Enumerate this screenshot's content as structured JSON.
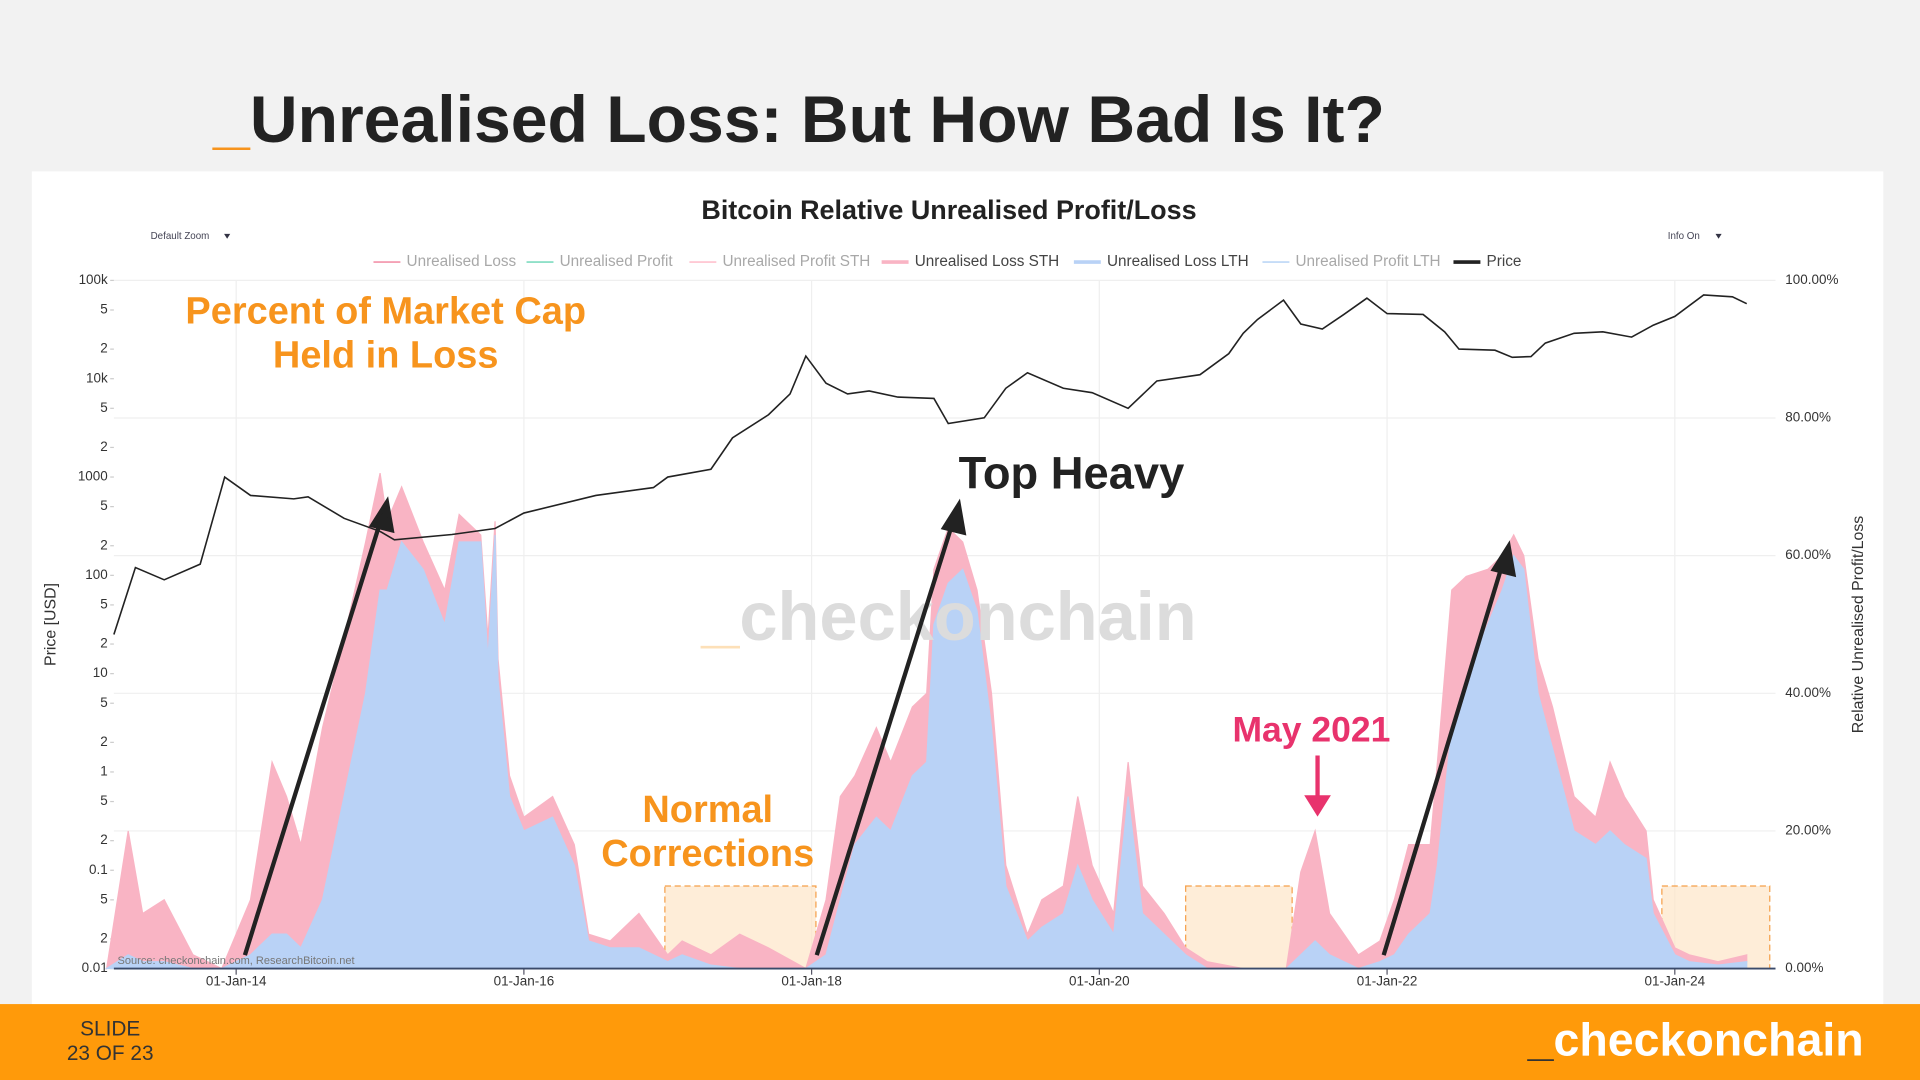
{
  "slide": {
    "title": [
      "_",
      "Unrealised Loss: But How Bad Is It?"
    ],
    "slide_label": "SLIDE",
    "slide_number": "23 OF 23",
    "brand": [
      "_",
      "checkonchain"
    ]
  },
  "chart_data": {
    "type": "area",
    "title": "Bitcoin Relative Unrealised Profit/Loss",
    "controls": [
      "Default Zoom",
      "Info On"
    ],
    "ylabel": "Price [USD]",
    "y2label": "Relative Unrealised Profit/Loss",
    "source": "Source: checkonchain.com, ResearchBitcoin.net",
    "watermark": [
      "_",
      "checkonchain"
    ],
    "log_y": true,
    "grid": true,
    "legend": "top",
    "xlim": [
      2013.15,
      2024.7
    ],
    "xticks": [
      {
        "value": 2014,
        "label": "01-Jan-14"
      },
      {
        "value": 2016,
        "label": "01-Jan-16"
      },
      {
        "value": 2018,
        "label": "01-Jan-18"
      },
      {
        "value": 2020,
        "label": "01-Jan-20"
      },
      {
        "value": 2022,
        "label": "01-Jan-22"
      },
      {
        "value": 2024,
        "label": "01-Jan-24"
      }
    ],
    "ylim": [
      0.01,
      100000
    ],
    "yticks": [
      {
        "value": 0.01,
        "label": "0.01"
      },
      {
        "value": 0.02,
        "label": "2"
      },
      {
        "value": 0.05,
        "label": "5"
      },
      {
        "value": 0.1,
        "label": "0.1"
      },
      {
        "value": 0.2,
        "label": "2"
      },
      {
        "value": 0.5,
        "label": "5"
      },
      1,
      2,
      5,
      10,
      {
        "value": 20,
        "label": "2"
      },
      {
        "value": 50,
        "label": "5"
      },
      100,
      {
        "value": 200,
        "label": "2"
      },
      {
        "value": 500,
        "label": "5"
      },
      1000,
      {
        "value": 2000,
        "label": "2"
      },
      {
        "value": 5000,
        "label": "5"
      },
      {
        "value": 10000,
        "label": "10k"
      },
      {
        "value": 20000,
        "label": "2"
      },
      {
        "value": 50000,
        "label": "5"
      },
      {
        "value": 100000,
        "label": "100k"
      }
    ],
    "y2lim": [
      0,
      100
    ],
    "y2ticks": [
      {
        "value": 0,
        "label": "0.00%"
      },
      {
        "value": 20,
        "label": "20.00%"
      },
      {
        "value": 40,
        "label": "40.00%"
      },
      {
        "value": 60,
        "label": "60.00%"
      },
      {
        "value": 80,
        "label": "80.00%"
      },
      {
        "value": 100,
        "label": "100.00%"
      }
    ],
    "highlights": [
      {
        "x": [
          2016.98,
          2018.03
        ],
        "y": [
          0,
          12
        ]
      },
      {
        "x": [
          2020.6,
          2021.34
        ],
        "y": [
          0,
          12
        ]
      },
      {
        "x": [
          2023.91,
          2024.66
        ],
        "y": [
          0,
          12
        ]
      }
    ],
    "annotations": {
      "held_in_loss": [
        "Percent of Market Cap",
        "Held in Loss"
      ],
      "top_heavy": "Top Heavy",
      "normal_corrections": [
        "Normal",
        "Corrections"
      ],
      "may_2021": "May 2021"
    },
    "series": [
      {
        "name": "Unrealised Loss",
        "color": "#f4a1b5",
        "hidden": true
      },
      {
        "name": "Unrealised Profit",
        "color": "#8fe0c8",
        "hidden": true
      },
      {
        "name": "Unrealised Profit STH",
        "color": "#ffc9d4",
        "hidden": true
      },
      {
        "name": "Unrealised Loss STH",
        "color": "#f9b4c4",
        "axis": "y2",
        "stack": true,
        "x": [
          2013.1,
          2013.25,
          2013.35,
          2013.5,
          2013.7,
          2013.9,
          2014.1,
          2014.25,
          2014.35,
          2014.45,
          2014.6,
          2014.75,
          2014.9,
          2015.0,
          2015.05,
          2015.15,
          2015.3,
          2015.45,
          2015.55,
          2015.7,
          2015.75,
          2015.8,
          2015.82,
          2015.9,
          2016.0,
          2016.2,
          2016.35,
          2016.45,
          2016.6,
          2016.8,
          2017.0,
          2017.1,
          2017.3,
          2017.5,
          2017.7,
          2017.96,
          2018.1,
          2018.2,
          2018.3,
          2018.45,
          2018.55,
          2018.7,
          2018.8,
          2018.85,
          2018.95,
          2019.05,
          2019.15,
          2019.25,
          2019.35,
          2019.5,
          2019.6,
          2019.75,
          2019.85,
          2019.95,
          2020.1,
          2020.2,
          2020.3,
          2020.45,
          2020.6,
          2020.75,
          2021.0,
          2021.3,
          2021.4,
          2021.5,
          2021.6,
          2021.8,
          2021.95,
          2022.05,
          2022.15,
          2022.3,
          2022.35,
          2022.45,
          2022.55,
          2022.7,
          2022.8,
          2022.88,
          2022.95,
          2023.05,
          2023.15,
          2023.3,
          2023.45,
          2023.55,
          2023.65,
          2023.8,
          2023.85,
          2024.0,
          2024.1,
          2024.3,
          2024.5
        ],
        "values": [
          0,
          18,
          7,
          9,
          2,
          0,
          8,
          25,
          20,
          15,
          25,
          23,
          22,
          17,
          10,
          8,
          4,
          5,
          4,
          1,
          3,
          2,
          3,
          3,
          2,
          3,
          3,
          1,
          1,
          5,
          1,
          2,
          1.5,
          5,
          3,
          0,
          8,
          15,
          10,
          13,
          10,
          10,
          10,
          8,
          8,
          4,
          3,
          5,
          3,
          1,
          4,
          4,
          10,
          5,
          3,
          5,
          4,
          3,
          1,
          1,
          0,
          0,
          12,
          16,
          6,
          2,
          3,
          8,
          13,
          10,
          15,
          20,
          15,
          8,
          5,
          3,
          2,
          5,
          6,
          5,
          4,
          10,
          7,
          4,
          2,
          1,
          1,
          0.5,
          1
        ]
      },
      {
        "name": "Unrealised Loss LTH",
        "color": "#b9d2f6",
        "axis": "y2",
        "x": [
          2013.1,
          2013.25,
          2013.35,
          2013.5,
          2013.7,
          2013.9,
          2014.1,
          2014.25,
          2014.35,
          2014.45,
          2014.6,
          2014.75,
          2014.9,
          2015.0,
          2015.05,
          2015.15,
          2015.3,
          2015.45,
          2015.55,
          2015.7,
          2015.75,
          2015.8,
          2015.82,
          2015.9,
          2016.0,
          2016.2,
          2016.35,
          2016.45,
          2016.6,
          2016.8,
          2017.0,
          2017.1,
          2017.3,
          2017.5,
          2017.7,
          2017.96,
          2018.1,
          2018.2,
          2018.3,
          2018.45,
          2018.55,
          2018.7,
          2018.8,
          2018.85,
          2018.95,
          2019.05,
          2019.15,
          2019.25,
          2019.35,
          2019.5,
          2019.6,
          2019.75,
          2019.85,
          2019.95,
          2020.1,
          2020.2,
          2020.3,
          2020.45,
          2020.6,
          2020.75,
          2021.0,
          2021.3,
          2021.4,
          2021.5,
          2021.6,
          2021.8,
          2021.95,
          2022.05,
          2022.15,
          2022.3,
          2022.35,
          2022.45,
          2022.55,
          2022.7,
          2022.8,
          2022.88,
          2022.95,
          2023.05,
          2023.15,
          2023.3,
          2023.45,
          2023.55,
          2023.65,
          2023.8,
          2023.85,
          2024.0,
          2024.1,
          2024.3,
          2024.5
        ],
        "values": [
          0,
          2,
          1,
          1,
          0,
          0,
          2,
          5,
          5,
          3,
          10,
          25,
          40,
          55,
          55,
          62,
          58,
          50,
          62,
          62,
          45,
          63,
          42,
          25,
          20,
          22,
          15,
          4,
          3,
          3,
          1,
          2,
          0.5,
          0,
          0,
          0,
          2,
          10,
          18,
          22,
          20,
          28,
          30,
          50,
          56,
          58,
          52,
          35,
          12,
          4,
          6,
          8,
          15,
          10,
          5,
          25,
          8,
          5,
          2,
          0,
          0,
          0,
          2,
          4,
          2,
          0,
          1,
          2,
          5,
          8,
          15,
          35,
          42,
          50,
          55,
          60,
          58,
          40,
          32,
          20,
          18,
          20,
          18,
          16,
          8,
          2,
          1,
          0.5,
          1
        ]
      },
      {
        "name": "Unrealised Profit LTH",
        "color": "#c5dcf7",
        "hidden": true
      },
      {
        "name": "Price",
        "color": "#222222",
        "axis": "y",
        "x": [
          2013.15,
          2013.3,
          2013.5,
          2013.75,
          2013.92,
          2014.1,
          2014.4,
          2014.5,
          2014.75,
          2015.0,
          2015.1,
          2015.5,
          2015.8,
          2016.0,
          2016.5,
          2016.9,
          2017.0,
          2017.3,
          2017.45,
          2017.7,
          2017.85,
          2017.96,
          2018.1,
          2018.25,
          2018.4,
          2018.6,
          2018.85,
          2018.95,
          2019.2,
          2019.35,
          2019.5,
          2019.75,
          2019.95,
          2020.2,
          2020.4,
          2020.7,
          2020.9,
          2021.0,
          2021.1,
          2021.28,
          2021.4,
          2021.55,
          2021.7,
          2021.86,
          2022.0,
          2022.25,
          2022.4,
          2022.5,
          2022.75,
          2022.87,
          2023.0,
          2023.1,
          2023.3,
          2023.5,
          2023.7,
          2023.85,
          2024.0,
          2024.2,
          2024.4,
          2024.5
        ],
        "values": [
          25,
          120,
          90,
          130,
          1000,
          650,
          600,
          630,
          380,
          280,
          230,
          260,
          300,
          430,
          650,
          780,
          1000,
          1200,
          2500,
          4300,
          7000,
          17000,
          9000,
          7000,
          7500,
          6500,
          6300,
          3500,
          4000,
          8000,
          11500,
          8000,
          7200,
          5000,
          9500,
          11000,
          18000,
          29000,
          40000,
          63000,
          36000,
          32000,
          45000,
          66000,
          46000,
          45000,
          30000,
          20000,
          19500,
          16500,
          16800,
          23000,
          29000,
          30000,
          26500,
          35000,
          43000,
          71000,
          68000,
          58000
        ]
      }
    ]
  }
}
